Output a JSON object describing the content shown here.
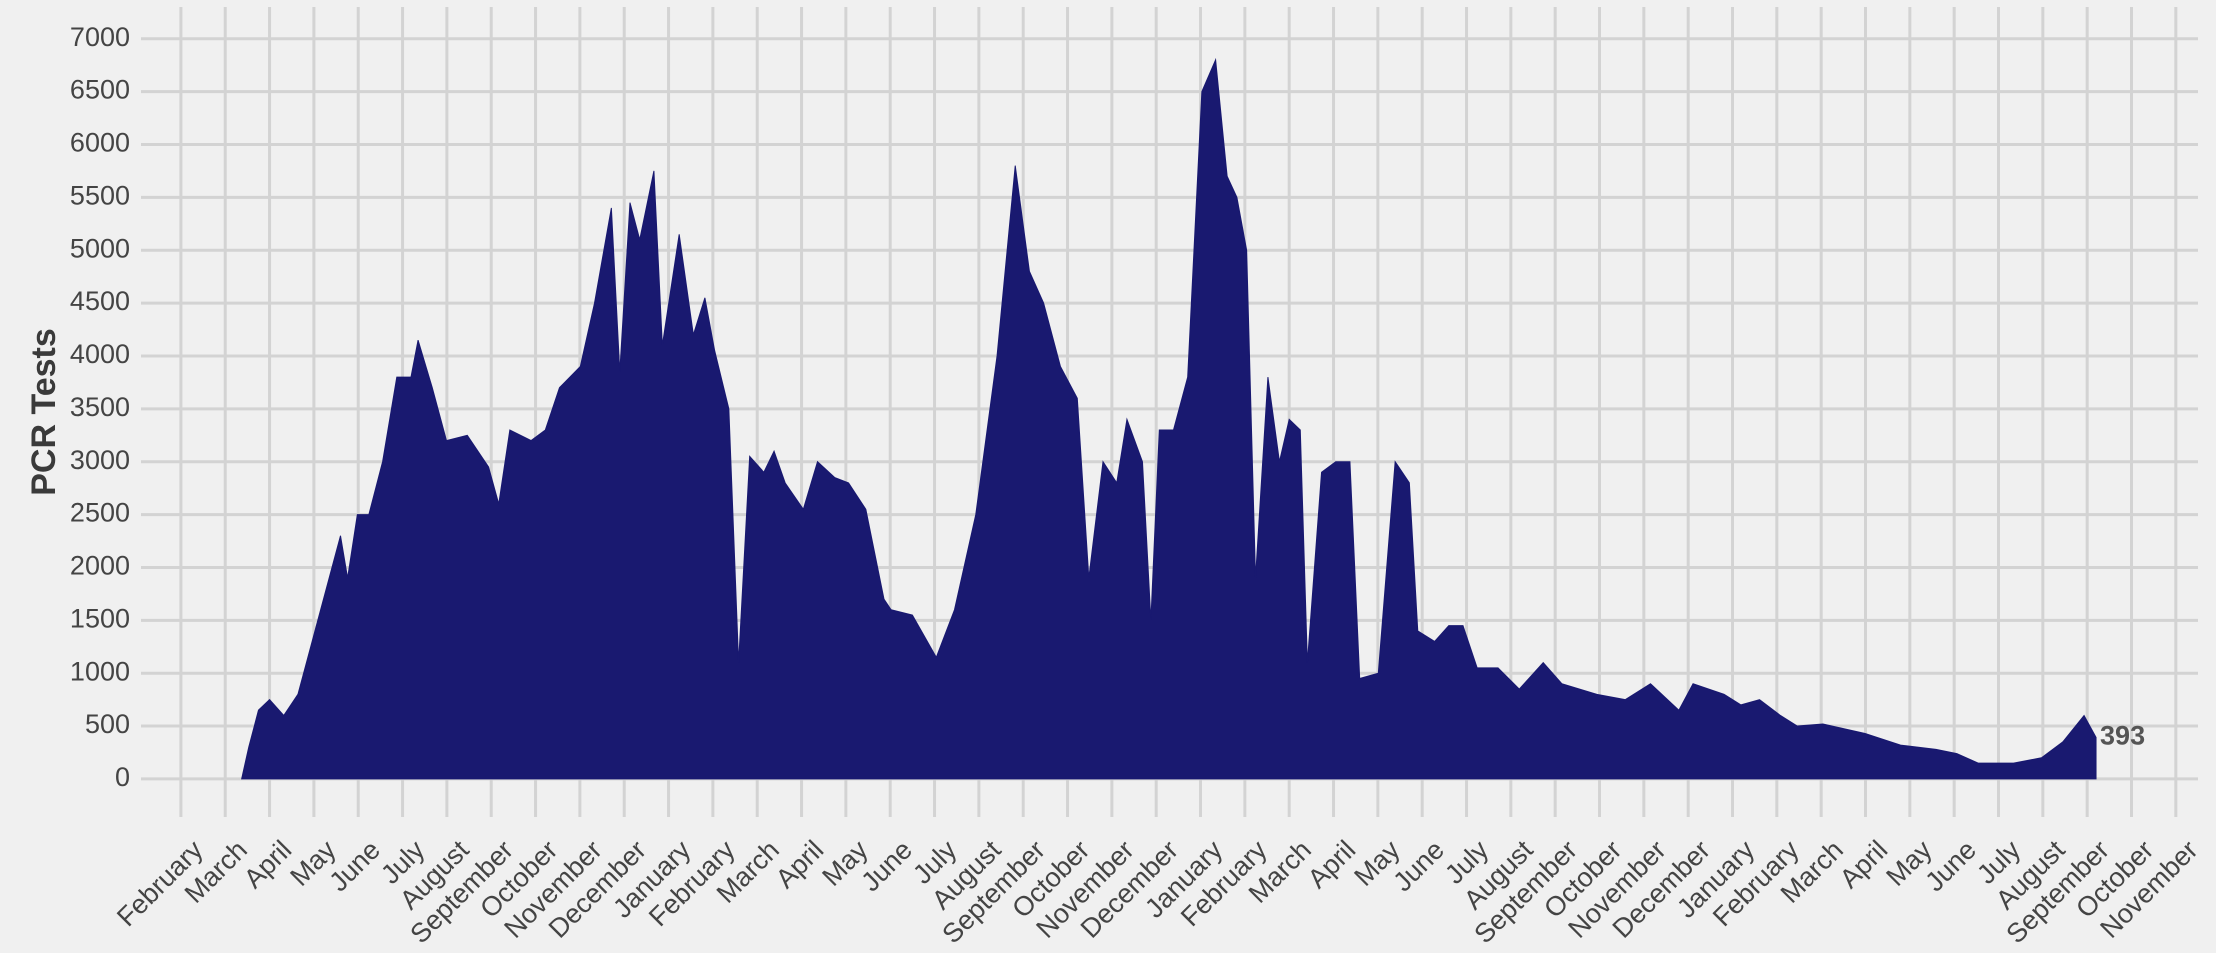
{
  "chart_data": {
    "type": "area",
    "ylabel": "PCR Tests",
    "color": "#191970",
    "grid": true,
    "xlim": [
      -0.9,
      45.5
    ],
    "ylim": [
      -360,
      7300
    ],
    "yticks": [
      0,
      500,
      1000,
      1500,
      2000,
      2500,
      3000,
      3500,
      4000,
      4500,
      5000,
      5500,
      6000,
      6500,
      7000
    ],
    "xticks": [
      {
        "value": 0,
        "label": "February"
      },
      {
        "value": 1,
        "label": "March"
      },
      {
        "value": 2,
        "label": "April"
      },
      {
        "value": 3,
        "label": "May"
      },
      {
        "value": 4,
        "label": "June"
      },
      {
        "value": 5,
        "label": "July"
      },
      {
        "value": 6,
        "label": "August"
      },
      {
        "value": 7,
        "label": "September"
      },
      {
        "value": 8,
        "label": "October"
      },
      {
        "value": 9,
        "label": "November"
      },
      {
        "value": 10,
        "label": "December"
      },
      {
        "value": 11,
        "label": "January"
      },
      {
        "value": 12,
        "label": "February"
      },
      {
        "value": 13,
        "label": "March"
      },
      {
        "value": 14,
        "label": "April"
      },
      {
        "value": 15,
        "label": "May"
      },
      {
        "value": 16,
        "label": "June"
      },
      {
        "value": 17,
        "label": "July"
      },
      {
        "value": 18,
        "label": "August"
      },
      {
        "value": 19,
        "label": "September"
      },
      {
        "value": 20,
        "label": "October"
      },
      {
        "value": 21,
        "label": "November"
      },
      {
        "value": 22,
        "label": "December"
      },
      {
        "value": 23,
        "label": "January"
      },
      {
        "value": 24,
        "label": "February"
      },
      {
        "value": 25,
        "label": "March"
      },
      {
        "value": 26,
        "label": "April"
      },
      {
        "value": 27,
        "label": "May"
      },
      {
        "value": 28,
        "label": "June"
      },
      {
        "value": 29,
        "label": "July"
      },
      {
        "value": 30,
        "label": "August"
      },
      {
        "value": 31,
        "label": "September"
      },
      {
        "value": 32,
        "label": "October"
      },
      {
        "value": 33,
        "label": "November"
      },
      {
        "value": 34,
        "label": "December"
      },
      {
        "value": 35,
        "label": "January"
      },
      {
        "value": 36,
        "label": "February"
      },
      {
        "value": 37,
        "label": "March"
      },
      {
        "value": 38,
        "label": "April"
      },
      {
        "value": 39,
        "label": "May"
      },
      {
        "value": 40,
        "label": "June"
      },
      {
        "value": 41,
        "label": "July"
      },
      {
        "value": 42,
        "label": "August"
      },
      {
        "value": 43,
        "label": "September"
      },
      {
        "value": 44,
        "label": "October"
      },
      {
        "value": 45,
        "label": "November"
      }
    ],
    "x": [
      1.37,
      1.53,
      1.75,
      2.0,
      2.32,
      2.64,
      2.96,
      3.28,
      3.6,
      3.76,
      3.98,
      4.24,
      4.55,
      4.87,
      5.19,
      5.35,
      5.67,
      5.99,
      6.46,
      6.94,
      7.17,
      7.42,
      7.9,
      8.22,
      8.54,
      9.01,
      9.33,
      9.71,
      9.9,
      10.13,
      10.35,
      10.67,
      10.86,
      11.24,
      11.56,
      11.82,
      12.04,
      12.36,
      12.58,
      12.83,
      13.15,
      13.38,
      13.63,
      14.04,
      14.36,
      14.75,
      15.06,
      15.45,
      15.86,
      16.02,
      16.5,
      17.04,
      17.45,
      17.93,
      18.41,
      18.82,
      19.14,
      19.46,
      19.84,
      20.22,
      20.48,
      20.8,
      21.11,
      21.34,
      21.69,
      21.88,
      22.07,
      22.39,
      22.71,
      23.03,
      23.34,
      23.6,
      23.82,
      24.04,
      24.24,
      24.52,
      24.78,
      25.0,
      25.25,
      25.41,
      25.73,
      26.05,
      26.37,
      26.59,
      27.01,
      27.39,
      27.71,
      27.9,
      28.28,
      28.6,
      28.92,
      29.24,
      29.71,
      30.19,
      30.73,
      31.15,
      31.94,
      32.58,
      33.15,
      33.79,
      34.11,
      34.81,
      35.19,
      35.61,
      36.08,
      36.46,
      37.04,
      37.99,
      38.79,
      39.59,
      40.06,
      40.54,
      41.34,
      41.97,
      42.45,
      42.93,
      43.2
    ],
    "values": [
      0,
      300,
      650,
      750,
      600,
      800,
      1300,
      1800,
      2300,
      1900,
      2500,
      2500,
      3000,
      3800,
      3800,
      4150,
      3700,
      3200,
      3250,
      2950,
      2600,
      3300,
      3200,
      3300,
      3700,
      3900,
      4500,
      5400,
      3850,
      5450,
      5100,
      5750,
      4100,
      5150,
      4200,
      4550,
      4050,
      3500,
      1100,
      3050,
      2900,
      3100,
      2800,
      2550,
      3000,
      2850,
      2800,
      2550,
      1700,
      1600,
      1550,
      1150,
      1600,
      2500,
      4000,
      5800,
      4800,
      4500,
      3900,
      3600,
      1900,
      3000,
      2800,
      3400,
      3000,
      1500,
      3300,
      3300,
      3800,
      6500,
      6800,
      5700,
      5500,
      5000,
      1900,
      3800,
      3000,
      3400,
      3300,
      1100,
      2900,
      3000,
      3000,
      950,
      1000,
      3000,
      2800,
      1400,
      1300,
      1450,
      1450,
      1050,
      1050,
      850,
      1100,
      900,
      800,
      750,
      900,
      650,
      900,
      800,
      700,
      750,
      600,
      500,
      520,
      430,
      320,
      280,
      240,
      150,
      150,
      200,
      350,
      600,
      393
    ]
  }
}
